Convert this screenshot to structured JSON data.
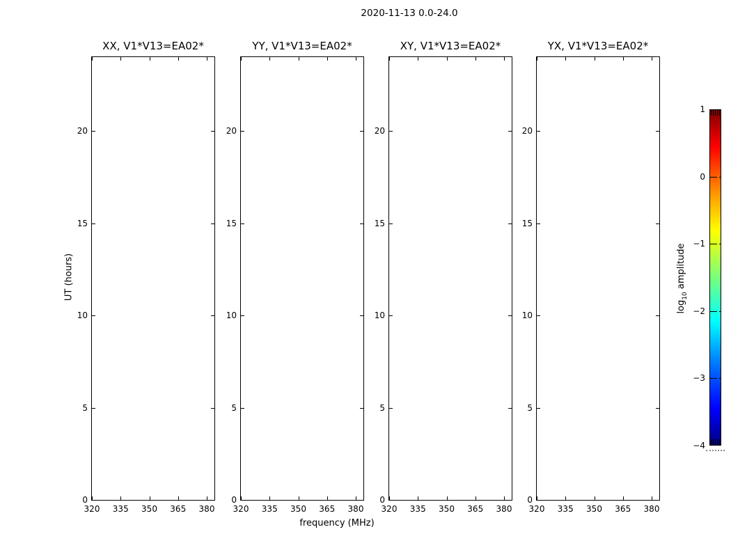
{
  "figure": {
    "title": "2020-11-13 0.0-24.0"
  },
  "axes": {
    "xlabel": "frequency (MHz)",
    "ylabel": "UT (hours)",
    "x_range": [
      320,
      384
    ],
    "y_range": [
      0,
      24
    ],
    "x_tick_values": [
      320,
      335,
      350,
      365,
      380
    ],
    "x_tick_labels": [
      "320",
      "335",
      "350",
      "365",
      "380"
    ],
    "y_tick_values": [
      0,
      5,
      10,
      15,
      20
    ],
    "y_tick_labels": [
      "0",
      "5",
      "10",
      "15",
      "20"
    ]
  },
  "subplots": [
    {
      "title": "XX, V1*V13=EA02*"
    },
    {
      "title": "YY, V1*V13=EA02*"
    },
    {
      "title": "XY, V1*V13=EA02*"
    },
    {
      "title": "YX, V1*V13=EA02*"
    }
  ],
  "colorbar": {
    "label": "log10 amplitude",
    "label_parts": {
      "pre": "log",
      "sub": "10",
      "post": " amplitude"
    },
    "range": [
      -4,
      1
    ],
    "tick_values": [
      1,
      0,
      -1,
      -2,
      -3,
      -4
    ],
    "tick_labels": [
      "1",
      "0",
      "−1",
      "−2",
      "−3",
      "−4"
    ],
    "colormap": "jet",
    "colormap_colors": [
      "#000080",
      "#0000ff",
      "#0080ff",
      "#00ffff",
      "#7aff7a",
      "#ffff00",
      "#ff9700",
      "#ff0000",
      "#800000"
    ]
  },
  "chart_data": {
    "type": "heatmap",
    "title": "2020-11-13 0.0-24.0",
    "panels": [
      {
        "title": "XX, V1*V13=EA02*",
        "values": []
      },
      {
        "title": "YY, V1*V13=EA02*",
        "values": []
      },
      {
        "title": "XY, V1*V13=EA02*",
        "values": []
      },
      {
        "title": "YX, V1*V13=EA02*",
        "values": []
      }
    ],
    "xlabel": "frequency (MHz)",
    "ylabel": "UT (hours)",
    "xlim": [
      320,
      384
    ],
    "ylim": [
      0,
      24
    ],
    "x_ticks": [
      320,
      335,
      350,
      365,
      380
    ],
    "y_ticks": [
      0,
      5,
      10,
      15,
      20
    ],
    "grid": false,
    "colorbar": {
      "label": "log10 amplitude",
      "range": [
        -4,
        1
      ],
      "ticks": [
        1,
        0,
        -1,
        -2,
        -3,
        -4
      ],
      "colormap": "jet"
    }
  }
}
